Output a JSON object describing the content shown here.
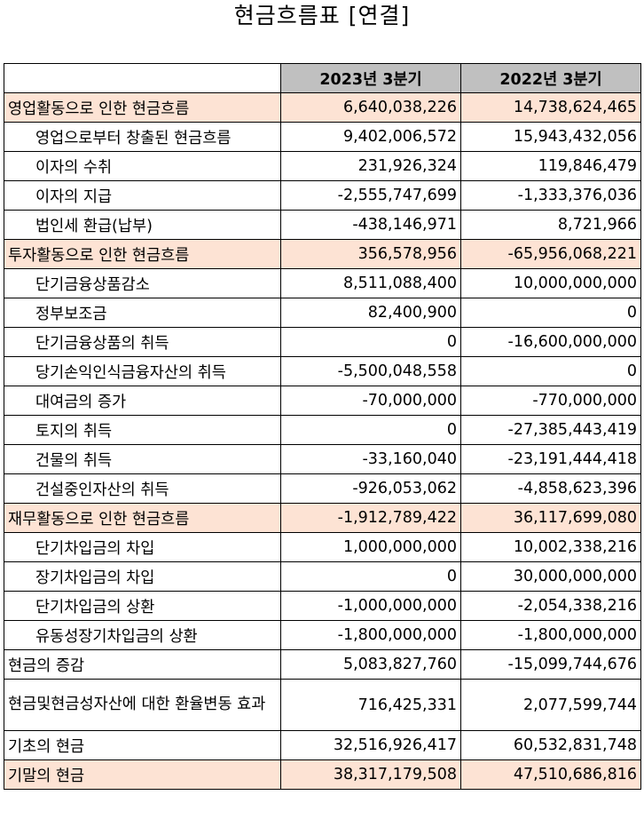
{
  "title": "현금흐름표 [연결]",
  "columns": [
    "",
    "2023년 3분기",
    "2022년 3분기"
  ],
  "rows": [
    {
      "label": "영업활동으로 인한 현금흐름",
      "v2023": "6,640,038,226",
      "v2022": "14,738,624,465",
      "type": "section"
    },
    {
      "label": "영업으로부터 창출된 현금흐름",
      "v2023": "9,402,006,572",
      "v2022": "15,943,432,056",
      "type": "sub"
    },
    {
      "label": "이자의 수취",
      "v2023": "231,926,324",
      "v2022": "119,846,479",
      "type": "sub"
    },
    {
      "label": "이자의 지급",
      "v2023": "-2,555,747,699",
      "v2022": "-1,333,376,036",
      "type": "sub"
    },
    {
      "label": "법인세 환급(납부)",
      "v2023": "-438,146,971",
      "v2022": "8,721,966",
      "type": "sub"
    },
    {
      "label": "투자활동으로 인한 현금흐름",
      "v2023": "356,578,956",
      "v2022": "-65,956,068,221",
      "type": "section"
    },
    {
      "label": "단기금융상품감소",
      "v2023": "8,511,088,400",
      "v2022": "10,000,000,000",
      "type": "sub"
    },
    {
      "label": "정부보조금",
      "v2023": "82,400,900",
      "v2022": "0",
      "type": "sub"
    },
    {
      "label": "단기금융상품의 취득",
      "v2023": "0",
      "v2022": "-16,600,000,000",
      "type": "sub"
    },
    {
      "label": "당기손익인식금융자산의 취득",
      "v2023": "-5,500,048,558",
      "v2022": "0",
      "type": "sub"
    },
    {
      "label": "대여금의 증가",
      "v2023": "-70,000,000",
      "v2022": "-770,000,000",
      "type": "sub"
    },
    {
      "label": "토지의 취득",
      "v2023": "0",
      "v2022": "-27,385,443,419",
      "type": "sub"
    },
    {
      "label": "건물의 취득",
      "v2023": "-33,160,040",
      "v2022": "-23,191,444,418",
      "type": "sub"
    },
    {
      "label": "건설중인자산의 취득",
      "v2023": "-926,053,062",
      "v2022": "-4,858,623,396",
      "type": "sub"
    },
    {
      "label": "재무활동으로 인한 현금흐름",
      "v2023": "-1,912,789,422",
      "v2022": "36,117,699,080",
      "type": "section"
    },
    {
      "label": "단기차입금의 차입",
      "v2023": "1,000,000,000",
      "v2022": "10,002,338,216",
      "type": "sub"
    },
    {
      "label": "장기차입금의 차입",
      "v2023": "0",
      "v2022": "30,000,000,000",
      "type": "sub"
    },
    {
      "label": "단기차입금의 상환",
      "v2023": "-1,000,000,000",
      "v2022": "-2,054,338,216",
      "type": "sub"
    },
    {
      "label": "유동성장기차입금의 상환",
      "v2023": "-1,800,000,000",
      "v2022": "-1,800,000,000",
      "type": "sub"
    },
    {
      "label": "현금의 증감",
      "v2023": "5,083,827,760",
      "v2022": "-15,099,744,676",
      "type": "plain"
    },
    {
      "label": "현금및현금성자산에 대한 환율변동 효과",
      "v2023": "716,425,331",
      "v2022": "2,077,599,744",
      "type": "tall"
    },
    {
      "label": "기초의 현금",
      "v2023": "32,516,926,417",
      "v2022": "60,532,831,748",
      "type": "plain"
    },
    {
      "label": "기말의 현금",
      "v2023": "38,317,179,508",
      "v2022": "47,510,686,816",
      "type": "section"
    }
  ],
  "colors": {
    "section_highlight": "#fde3d4",
    "header_bg": "#c0c0c0"
  }
}
